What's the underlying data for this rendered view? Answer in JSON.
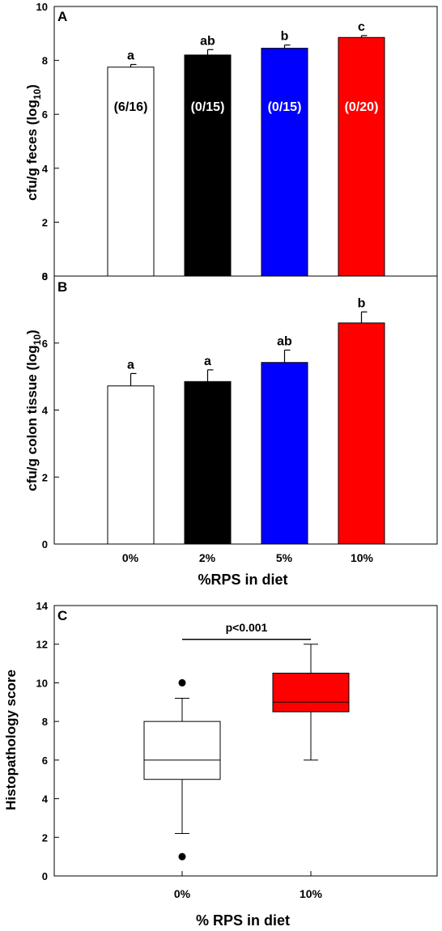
{
  "chart_data": [
    {
      "panel": "A",
      "type": "bar",
      "categories": [
        "0%",
        "2%",
        "5%",
        "10%"
      ],
      "values": [
        7.75,
        8.2,
        8.45,
        8.85
      ],
      "error_upper": [
        0.1,
        0.2,
        0.12,
        0.07
      ],
      "letters": [
        "a",
        "ab",
        "b",
        "c"
      ],
      "bar_labels": [
        "(6/16)",
        "(0/15)",
        "(0/15)",
        "(0/20)"
      ],
      "colors": [
        "#ffffff",
        "#000000",
        "#0000ff",
        "#ff0000"
      ],
      "ylabel": "cfu/g feces (log10)",
      "ylim": [
        0,
        10
      ],
      "yticks": [
        "0",
        "2",
        "4",
        "6",
        "8",
        "10"
      ],
      "grid": false
    },
    {
      "panel": "B",
      "type": "bar",
      "categories": [
        "0%",
        "2%",
        "5%",
        "10%"
      ],
      "values": [
        4.72,
        4.85,
        5.42,
        6.6
      ],
      "error_upper": [
        0.37,
        0.35,
        0.37,
        0.33
      ],
      "letters": [
        "a",
        "a",
        "ab",
        "b"
      ],
      "colors": [
        "#ffffff",
        "#000000",
        "#0000ff",
        "#ff0000"
      ],
      "ylabel": "cfu/g colon tissue (log10)",
      "xlabel": "%RPS in diet",
      "ylim": [
        0,
        8
      ],
      "yticks": [
        "0",
        "2",
        "4",
        "6",
        "8"
      ],
      "grid": false
    },
    {
      "panel": "C",
      "type": "box",
      "categories": [
        "0%",
        "10%"
      ],
      "boxes": [
        {
          "whisker_low": 2.2,
          "q1": 5,
          "median": 6,
          "q3": 8,
          "whisker_high": 9.2,
          "outliers": [
            1,
            10
          ],
          "color": "#ffffff"
        },
        {
          "whisker_low": 6,
          "q1": 8.5,
          "median": 9,
          "q3": 10.5,
          "whisker_high": 12,
          "outliers": [],
          "color": "#ff0000"
        }
      ],
      "annotation": "p<0.001",
      "ylabel": "Histopathology score",
      "xlabel": "% RPS in diet",
      "ylim": [
        0,
        14
      ],
      "yticks": [
        "0",
        "2",
        "4",
        "6",
        "8",
        "10",
        "12",
        "14"
      ],
      "grid": false
    }
  ]
}
